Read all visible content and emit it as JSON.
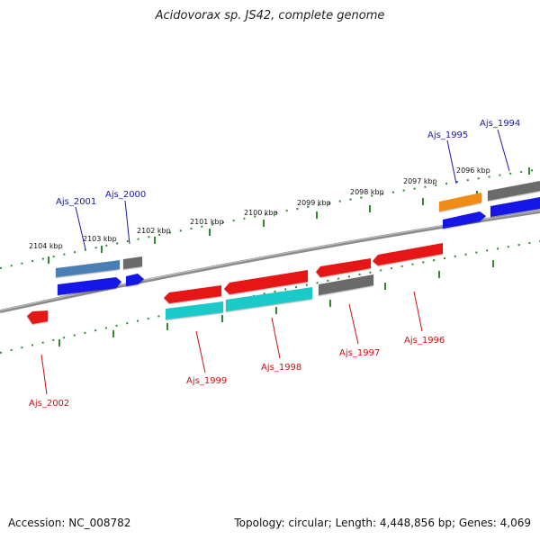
{
  "title": "Acidovorax sp. JS42, complete genome",
  "footer": {
    "accession": "Accession: NC_008782",
    "summary": "Topology: circular; Length: 4,448,856 bp; Genes: 4,069"
  },
  "colors": {
    "forward_label": "#1a1aa8",
    "reverse_label": "#cc1111",
    "backbone": "#8c8c8c",
    "tick": "#2e8b2e",
    "blue_gene": "#1616e6",
    "red_gene": "#e61414",
    "steel_gene": "#4a7fb5",
    "gray_gene": "#6b6b6b",
    "cyan_gene": "#1fc9c9",
    "orange_gene": "#f08c14"
  },
  "scale_labels": [
    "2104 kbp",
    "2103 kbp",
    "2102 kbp",
    "2101 kbp",
    "2100 kbp",
    "2099 kbp",
    "2098 kbp",
    "2097 kbp",
    "2096 kbp"
  ],
  "forward_genes": [
    "Ajs_2001",
    "Ajs_2000",
    "Ajs_1995",
    "Ajs_1994"
  ],
  "reverse_genes": [
    "Ajs_2002",
    "Ajs_1999",
    "Ajs_1998",
    "Ajs_1997",
    "Ajs_1996"
  ]
}
